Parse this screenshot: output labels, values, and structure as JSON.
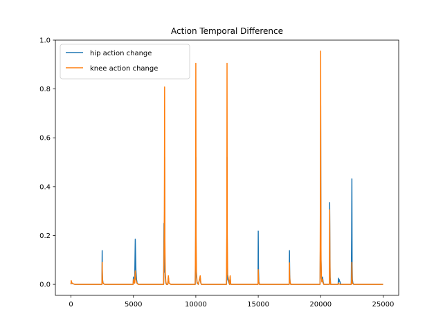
{
  "chart_data": {
    "type": "line",
    "title": "Action Temporal Difference",
    "xlabel": "",
    "ylabel": "",
    "xlim": [
      -1250,
      26250
    ],
    "ylim": [
      -0.045,
      1.0
    ],
    "xticks": [
      0,
      5000,
      10000,
      15000,
      20000,
      25000
    ],
    "xtick_labels": [
      "0",
      "5000",
      "10000",
      "15000",
      "20000",
      "25000"
    ],
    "yticks": [
      0.0,
      0.2,
      0.4,
      0.6,
      0.8,
      1.0
    ],
    "ytick_labels": [
      "0.0",
      "0.2",
      "0.4",
      "0.6",
      "0.8",
      "1.0"
    ],
    "grid": false,
    "legend_position": "top-left",
    "series": [
      {
        "name": "hip action change",
        "color": "#1f77b4",
        "x": [
          0,
          20,
          40,
          80,
          120,
          200,
          300,
          2480,
          2500,
          2510,
          2530,
          2560,
          2600,
          2700,
          2800,
          4980,
          5000,
          5020,
          5100,
          5150,
          5200,
          5250,
          5300,
          5400,
          7420,
          7450,
          7480,
          7500,
          7520,
          7550,
          7600,
          7650,
          7750,
          7800,
          7850,
          8000,
          9950,
          9980,
          10000,
          10020,
          10050,
          10100,
          10200,
          10350,
          10400,
          10450,
          12450,
          12480,
          12500,
          12520,
          12550,
          12700,
          12750,
          12800,
          14980,
          15000,
          15020,
          15050,
          15100,
          17480,
          17500,
          17520,
          17550,
          17600,
          19950,
          19980,
          20000,
          20010,
          20030,
          20060,
          20100,
          20150,
          20200,
          20250,
          20700,
          20720,
          20740,
          20760,
          20800,
          21400,
          21420,
          21450,
          21480,
          21500,
          21550,
          21600,
          22450,
          22480,
          22500,
          22520,
          22540,
          22580,
          22650,
          25000
        ],
        "y": [
          0.0,
          0.012,
          0.008,
          0.005,
          0.003,
          0.002,
          0.0,
          0.0,
          0.138,
          0.06,
          0.02,
          0.008,
          0.003,
          0.0,
          0.0,
          0.0,
          0.03,
          0.01,
          0.005,
          0.185,
          0.06,
          0.02,
          0.005,
          0.0,
          0.0,
          0.25,
          0.05,
          0.52,
          0.1,
          0.03,
          0.005,
          0.0,
          0.0,
          0.03,
          0.005,
          0.0,
          0.0,
          0.14,
          0.52,
          0.1,
          0.03,
          0.005,
          0.0,
          0.03,
          0.005,
          0.0,
          0.0,
          0.1,
          0.52,
          0.1,
          0.02,
          0.0,
          0.03,
          0.0,
          0.0,
          0.218,
          0.06,
          0.01,
          0.0,
          0.0,
          0.138,
          0.04,
          0.01,
          0.0,
          0.0,
          0.2,
          0.733,
          0.45,
          0.1,
          0.03,
          0.01,
          0.03,
          0.01,
          0.0,
          0.0,
          0.335,
          0.15,
          0.03,
          0.0,
          0.0,
          0.025,
          0.01,
          0.02,
          0.015,
          0.01,
          0.0,
          0.0,
          0.2,
          0.432,
          0.08,
          0.02,
          0.005,
          0.0,
          0.0
        ]
      },
      {
        "name": "knee action change",
        "color": "#ff7f0e",
        "x": [
          0,
          20,
          40,
          80,
          120,
          200,
          300,
          2480,
          2500,
          2510,
          2530,
          2560,
          2600,
          2700,
          2800,
          4980,
          5000,
          5020,
          5100,
          5150,
          5200,
          5250,
          5300,
          5400,
          7420,
          7450,
          7480,
          7500,
          7520,
          7550,
          7600,
          7650,
          7750,
          7800,
          7850,
          8000,
          9950,
          9980,
          10000,
          10020,
          10050,
          10100,
          10200,
          10350,
          10400,
          10450,
          12450,
          12480,
          12500,
          12520,
          12550,
          12700,
          12750,
          12800,
          14980,
          15000,
          15020,
          15050,
          15100,
          17480,
          17500,
          17520,
          17550,
          17600,
          19950,
          19980,
          20000,
          20010,
          20030,
          20060,
          20100,
          20150,
          20200,
          20250,
          20700,
          20720,
          20740,
          20760,
          20800,
          21400,
          21420,
          21450,
          21480,
          21500,
          21550,
          21600,
          22450,
          22480,
          22500,
          22520,
          22540,
          22580,
          22650,
          25000
        ],
        "y": [
          0.0,
          0.015,
          0.01,
          0.006,
          0.003,
          0.002,
          0.0,
          0.0,
          0.09,
          0.04,
          0.015,
          0.006,
          0.003,
          0.0,
          0.0,
          0.0,
          0.02,
          0.01,
          0.005,
          0.055,
          0.02,
          0.01,
          0.003,
          0.0,
          0.0,
          0.12,
          0.3,
          0.808,
          0.2,
          0.05,
          0.01,
          0.0,
          0.0,
          0.035,
          0.005,
          0.0,
          0.0,
          0.2,
          0.905,
          0.2,
          0.05,
          0.01,
          0.0,
          0.035,
          0.005,
          0.0,
          0.0,
          0.2,
          0.905,
          0.2,
          0.04,
          0.0,
          0.035,
          0.0,
          0.0,
          0.06,
          0.02,
          0.005,
          0.0,
          0.0,
          0.088,
          0.03,
          0.01,
          0.0,
          0.0,
          0.4,
          0.955,
          0.4,
          0.1,
          0.03,
          0.01,
          0.02,
          0.005,
          0.0,
          0.0,
          0.305,
          0.1,
          0.02,
          0.0,
          0.0,
          0.005,
          0.003,
          0.002,
          0.001,
          0.0,
          0.0,
          0.0,
          0.03,
          0.09,
          0.02,
          0.005,
          0.002,
          0.0,
          0.0
        ]
      }
    ]
  }
}
